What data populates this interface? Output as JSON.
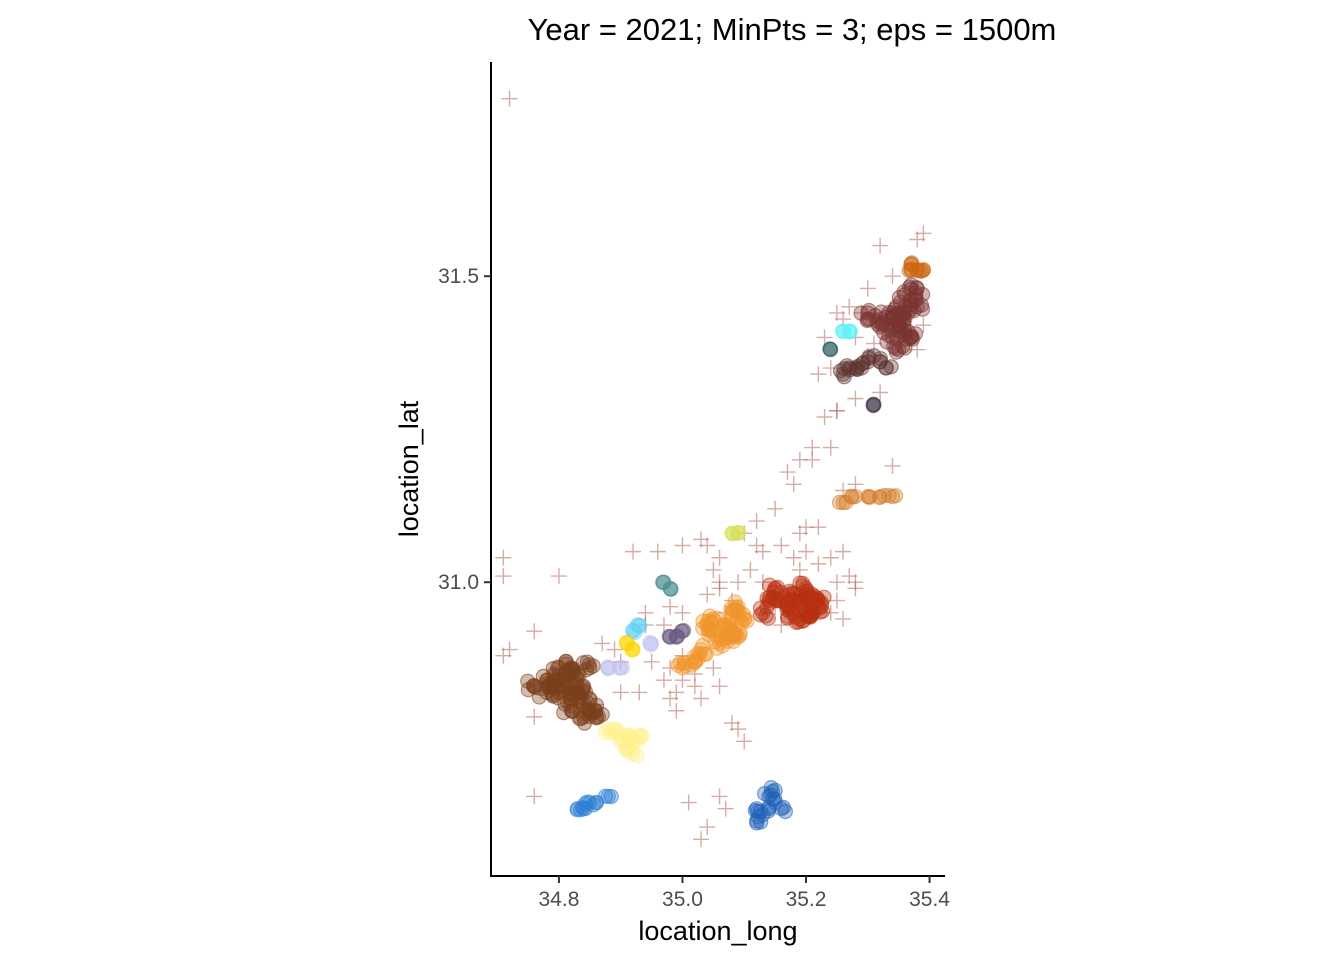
{
  "chart_data": {
    "type": "scatter",
    "title": "Year = 2021; MinPts = 3; eps = 1500m",
    "xlabel": "location_long",
    "ylabel": "location_lat",
    "xlim": [
      34.69,
      35.425
    ],
    "ylim": [
      30.52,
      31.85
    ],
    "x_ticks": [
      34.8,
      35.0,
      35.2,
      35.4
    ],
    "x_tick_labels": [
      "34.8",
      "35.0",
      "35.2",
      "35.4"
    ],
    "y_ticks": [
      31.0,
      31.5
    ],
    "y_tick_labels": [
      "31.0",
      "31.5"
    ],
    "grid": false,
    "legend": "none",
    "noise_color": "#b05a50",
    "clusters": [
      {
        "color": "#7b3f1c",
        "spread": [
          0.025,
          0.022
        ],
        "points": [
          [
            34.76,
            30.83
          ],
          [
            34.78,
            30.84
          ],
          [
            34.8,
            30.86
          ],
          [
            34.82,
            30.86
          ],
          [
            34.83,
            30.85
          ],
          [
            34.8,
            30.82
          ],
          [
            34.82,
            30.81
          ],
          [
            34.84,
            30.8
          ],
          [
            34.84,
            30.78
          ],
          [
            34.82,
            30.79
          ],
          [
            34.78,
            30.82
          ],
          [
            34.8,
            30.84
          ],
          [
            34.82,
            30.83
          ],
          [
            34.84,
            30.83
          ],
          [
            34.85,
            30.86
          ],
          [
            34.86,
            30.79
          ],
          [
            34.86,
            30.78
          ],
          [
            34.79,
            30.83
          ],
          [
            34.81,
            30.85
          ],
          [
            34.83,
            30.82
          ]
        ]
      },
      {
        "color": "#7a3532",
        "spread": [
          0.022,
          0.025
        ],
        "points": [
          [
            35.33,
            31.42
          ],
          [
            35.35,
            31.44
          ],
          [
            35.37,
            31.46
          ],
          [
            35.38,
            31.48
          ],
          [
            35.36,
            31.41
          ],
          [
            35.34,
            31.4
          ],
          [
            35.32,
            31.43
          ],
          [
            35.35,
            31.38
          ],
          [
            35.37,
            31.4
          ],
          [
            35.36,
            31.43
          ],
          [
            35.38,
            31.45
          ],
          [
            35.34,
            31.44
          ],
          [
            35.3,
            31.44
          ],
          [
            35.36,
            31.47
          ],
          [
            35.35,
            31.42
          ]
        ]
      },
      {
        "color": "#5e3530",
        "spread": [
          0.02,
          0.012
        ],
        "points": [
          [
            35.26,
            31.34
          ],
          [
            35.28,
            31.35
          ],
          [
            35.3,
            31.36
          ],
          [
            35.32,
            31.36
          ],
          [
            35.31,
            31.37
          ],
          [
            35.29,
            31.35
          ],
          [
            35.27,
            31.35
          ],
          [
            35.33,
            31.35
          ]
        ]
      },
      {
        "color": "#b83212",
        "spread": [
          0.02,
          0.018
        ],
        "points": [
          [
            35.17,
            30.96
          ],
          [
            35.19,
            30.97
          ],
          [
            35.21,
            30.98
          ],
          [
            35.22,
            30.97
          ],
          [
            35.2,
            30.95
          ],
          [
            35.18,
            30.98
          ],
          [
            35.2,
            30.99
          ],
          [
            35.22,
            30.96
          ],
          [
            35.18,
            30.95
          ],
          [
            35.16,
            30.97
          ],
          [
            35.2,
            30.97
          ],
          [
            35.19,
            30.94
          ],
          [
            35.13,
            30.95
          ],
          [
            35.14,
            30.97
          ],
          [
            35.15,
            30.99
          ],
          [
            35.21,
            30.95
          ]
        ]
      },
      {
        "color": "#f0962c",
        "spread": [
          0.018,
          0.018
        ],
        "points": [
          [
            35.05,
            30.92
          ],
          [
            35.07,
            30.93
          ],
          [
            35.09,
            30.91
          ],
          [
            35.08,
            30.95
          ],
          [
            35.06,
            30.9
          ],
          [
            35.04,
            30.93
          ],
          [
            35.08,
            30.92
          ],
          [
            35.1,
            30.94
          ],
          [
            35.09,
            30.96
          ],
          [
            35.03,
            30.89
          ],
          [
            35.02,
            30.87
          ],
          [
            35.0,
            30.86
          ],
          [
            35.05,
            30.94
          ],
          [
            35.07,
            30.91
          ]
        ]
      },
      {
        "color": "#fff08a",
        "spread": [
          0.014,
          0.012
        ],
        "points": [
          [
            34.89,
            30.76
          ],
          [
            34.91,
            30.75
          ],
          [
            34.92,
            30.74
          ],
          [
            34.93,
            30.75
          ],
          [
            34.91,
            30.73
          ],
          [
            34.9,
            30.74
          ],
          [
            34.92,
            30.72
          ],
          [
            34.88,
            30.76
          ]
        ]
      },
      {
        "color": "#2a7fd4",
        "spread": [
          0.018,
          0.008
        ],
        "points": [
          [
            34.83,
            30.63
          ],
          [
            34.85,
            30.64
          ],
          [
            34.86,
            30.64
          ],
          [
            34.88,
            30.65
          ],
          [
            34.84,
            30.63
          ]
        ]
      },
      {
        "color": "#2060b8",
        "spread": [
          0.016,
          0.012
        ],
        "points": [
          [
            35.12,
            30.63
          ],
          [
            35.13,
            30.62
          ],
          [
            35.14,
            30.63
          ],
          [
            35.15,
            30.64
          ],
          [
            35.16,
            30.63
          ],
          [
            35.14,
            30.65
          ],
          [
            35.12,
            30.61
          ],
          [
            35.15,
            30.66
          ]
        ]
      },
      {
        "color": "#cc6410",
        "spread": [
          0.01,
          0.004
        ],
        "points": [
          [
            35.37,
            31.51
          ],
          [
            35.38,
            31.51
          ],
          [
            35.39,
            31.51
          ],
          [
            35.37,
            31.52
          ]
        ]
      },
      {
        "color": "#d47c28",
        "spread": [
          0.014,
          0.004
        ],
        "points": [
          [
            35.26,
            31.13
          ],
          [
            35.28,
            31.14
          ],
          [
            35.3,
            31.14
          ],
          [
            35.32,
            31.14
          ],
          [
            35.34,
            31.14
          ]
        ]
      },
      {
        "color": "#c0c0f0",
        "spread": [
          0.008,
          0.005
        ],
        "points": [
          [
            34.88,
            30.86
          ],
          [
            34.9,
            30.86
          ],
          [
            34.95,
            30.9
          ]
        ]
      },
      {
        "color": "#6a5a80",
        "spread": [
          0.006,
          0.004
        ],
        "points": [
          [
            34.98,
            30.91
          ],
          [
            34.99,
            30.91
          ],
          [
            35.0,
            30.92
          ]
        ]
      },
      {
        "color": "#5fd0f5",
        "spread": [
          0.006,
          0.004
        ],
        "points": [
          [
            34.92,
            30.92
          ],
          [
            34.93,
            30.93
          ]
        ]
      },
      {
        "color": "#ffd400",
        "spread": [
          0.004,
          0.003
        ],
        "points": [
          [
            34.91,
            30.9
          ],
          [
            34.92,
            30.89
          ]
        ]
      },
      {
        "color": "#4f8f8f",
        "spread": [
          0.004,
          0.003
        ],
        "points": [
          [
            34.97,
            31.0
          ],
          [
            34.98,
            30.99
          ]
        ]
      },
      {
        "color": "#d6e05a",
        "spread": [
          0.005,
          0.003
        ],
        "points": [
          [
            35.08,
            31.08
          ],
          [
            35.09,
            31.08
          ]
        ]
      },
      {
        "color": "#5ef0f5",
        "spread": [
          0.004,
          0.003
        ],
        "points": [
          [
            35.26,
            31.41
          ],
          [
            35.27,
            31.41
          ]
        ]
      },
      {
        "color": "#2e5e5e",
        "spread": [
          0.003,
          0.003
        ],
        "points": [
          [
            35.24,
            31.38
          ]
        ]
      },
      {
        "color": "#3a3045",
        "spread": [
          0.003,
          0.003
        ],
        "points": [
          [
            35.31,
            31.29
          ]
        ]
      }
    ],
    "noise": [
      [
        34.72,
        31.79
      ],
      [
        34.71,
        31.04
      ],
      [
        34.71,
        31.01
      ],
      [
        34.72,
        30.89
      ],
      [
        34.71,
        30.88
      ],
      [
        34.76,
        30.92
      ],
      [
        34.76,
        30.78
      ],
      [
        34.76,
        30.65
      ],
      [
        34.8,
        31.01
      ],
      [
        34.87,
        30.9
      ],
      [
        34.89,
        30.89
      ],
      [
        34.86,
        30.8
      ],
      [
        34.9,
        30.82
      ],
      [
        34.93,
        30.82
      ],
      [
        34.94,
        30.95
      ],
      [
        34.94,
        30.93
      ],
      [
        34.92,
        31.05
      ],
      [
        34.95,
        30.87
      ],
      [
        34.97,
        30.84
      ],
      [
        34.98,
        30.81
      ],
      [
        34.99,
        30.79
      ],
      [
        34.98,
        30.86
      ],
      [
        35.0,
        30.95
      ],
      [
        35.0,
        30.88
      ],
      [
        35.02,
        30.85
      ],
      [
        35.0,
        30.84
      ],
      [
        35.02,
        30.83
      ],
      [
        35.03,
        30.81
      ],
      [
        35.03,
        31.07
      ],
      [
        35.04,
        31.06
      ],
      [
        35.06,
        31.0
      ],
      [
        35.06,
        30.99
      ],
      [
        35.07,
        30.95
      ],
      [
        35.08,
        30.97
      ],
      [
        35.09,
        31.0
      ],
      [
        35.11,
        31.02
      ],
      [
        35.13,
        31.0
      ],
      [
        35.14,
        30.97
      ],
      [
        35.15,
        30.96
      ],
      [
        35.12,
        31.06
      ],
      [
        35.16,
        31.06
      ],
      [
        35.18,
        31.04
      ],
      [
        35.19,
        31.02
      ],
      [
        35.2,
        31.05
      ],
      [
        35.22,
        31.03
      ],
      [
        35.24,
        31.04
      ],
      [
        35.25,
        31.0
      ],
      [
        35.27,
        31.01
      ],
      [
        35.28,
        30.99
      ],
      [
        35.25,
        30.97
      ],
      [
        35.24,
        30.95
      ],
      [
        35.26,
        30.94
      ],
      [
        35.28,
        31.0
      ],
      [
        35.26,
        31.05
      ],
      [
        35.19,
        31.08
      ],
      [
        35.2,
        31.09
      ],
      [
        35.22,
        31.09
      ],
      [
        35.17,
        31.18
      ],
      [
        35.19,
        31.2
      ],
      [
        35.21,
        31.2
      ],
      [
        35.21,
        31.22
      ],
      [
        35.23,
        31.27
      ],
      [
        35.25,
        31.28
      ],
      [
        35.24,
        31.22
      ],
      [
        35.26,
        31.15
      ],
      [
        35.28,
        31.16
      ],
      [
        35.34,
        31.19
      ],
      [
        35.32,
        31.31
      ],
      [
        35.28,
        31.3
      ],
      [
        35.3,
        31.37
      ],
      [
        35.31,
        31.39
      ],
      [
        35.28,
        31.4
      ],
      [
        35.29,
        31.44
      ],
      [
        35.3,
        31.48
      ],
      [
        35.32,
        31.55
      ],
      [
        35.34,
        31.5
      ],
      [
        35.38,
        31.56
      ],
      [
        35.39,
        31.57
      ],
      [
        35.39,
        31.42
      ],
      [
        35.38,
        31.38
      ],
      [
        35.26,
        31.43
      ],
      [
        35.27,
        31.45
      ],
      [
        35.22,
        31.34
      ],
      [
        35.24,
        31.35
      ],
      [
        35.23,
        31.4
      ],
      [
        35.25,
        31.44
      ],
      [
        35.25,
        31.28
      ],
      [
        35.15,
        31.12
      ],
      [
        35.18,
        31.16
      ],
      [
        35.12,
        31.1
      ],
      [
        35.06,
        31.04
      ],
      [
        35.05,
        31.02
      ],
      [
        35.04,
        30.98
      ],
      [
        35.08,
        30.77
      ],
      [
        35.09,
        30.76
      ],
      [
        35.1,
        30.74
      ],
      [
        35.05,
        30.86
      ],
      [
        35.06,
        30.83
      ],
      [
        35.01,
        30.64
      ],
      [
        35.04,
        30.6
      ],
      [
        35.06,
        30.65
      ],
      [
        35.07,
        30.63
      ],
      [
        35.03,
        30.58
      ],
      [
        34.99,
        30.82
      ],
      [
        34.97,
        30.93
      ],
      [
        34.98,
        30.96
      ],
      [
        34.9,
        30.87
      ],
      [
        34.96,
        31.05
      ],
      [
        35.0,
        31.06
      ],
      [
        35.1,
        31.08
      ],
      [
        35.16,
        30.93
      ],
      [
        35.13,
        31.05
      ]
    ]
  }
}
